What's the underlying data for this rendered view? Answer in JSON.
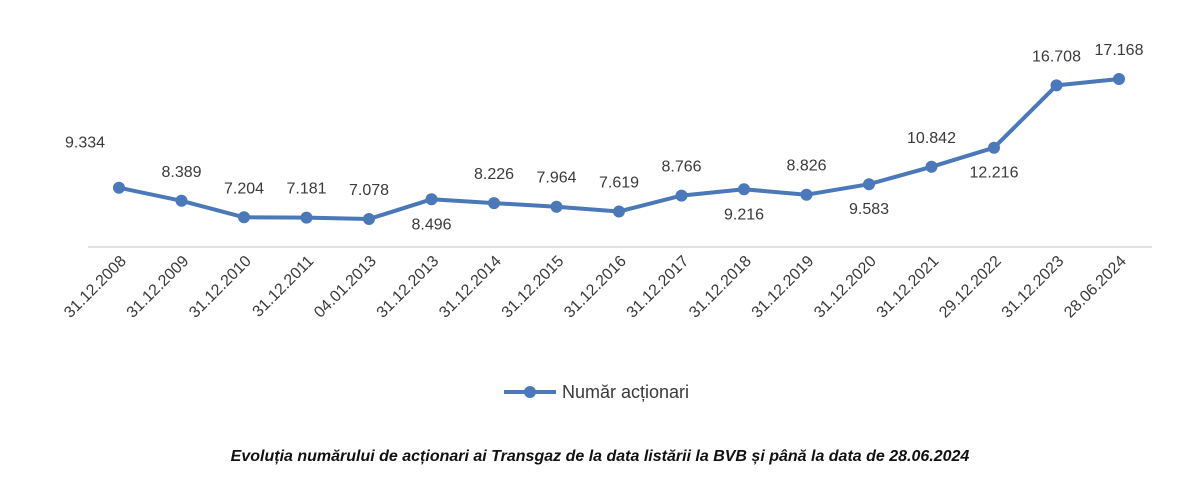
{
  "caption": "Evoluția numărului de acționari ai Transgaz de la data listării la BVB și până la data de 28.06.2024",
  "chart_data": {
    "type": "line",
    "categories": [
      "31.12.2008",
      "31.12.2009",
      "31.12.2010",
      "31.12.2011",
      "04.01.2013",
      "31.12.2013",
      "31.12.2014",
      "31.12.2015",
      "31.12.2016",
      "31.12.2017",
      "31.12.2018",
      "31.12.2019",
      "31.12.2020",
      "31.12.2021",
      "29.12.2022",
      "31.12.2023",
      "28.06.2024"
    ],
    "series": [
      {
        "name": "Număr acționari",
        "color": "#4a78b8",
        "values": [
          9334,
          8389,
          7204,
          7181,
          7078,
          8496,
          8226,
          7964,
          7619,
          8766,
          9216,
          8826,
          9583,
          10842,
          12216,
          16708,
          17168
        ],
        "labels": [
          "9.334",
          "8.389",
          "7.204",
          "7.181",
          "7.078",
          "8.496",
          "8.226",
          "7.964",
          "7.619",
          "8.766",
          "9.216",
          "8.826",
          "9.583",
          "10.842",
          "12.216",
          "16.708",
          "17.168"
        ],
        "label_positions": [
          "above",
          "above",
          "above",
          "above",
          "above",
          "below",
          "above",
          "above",
          "above",
          "above",
          "below",
          "above",
          "below",
          "above",
          "below",
          "above",
          "above"
        ]
      }
    ],
    "legend": "bottom-center",
    "grid": false
  }
}
